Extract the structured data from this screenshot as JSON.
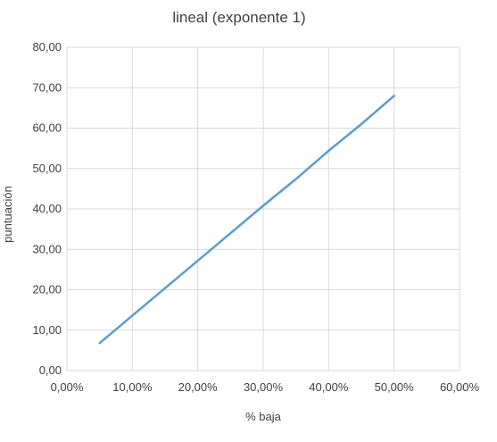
{
  "chart_data": {
    "type": "line",
    "title": "lineal (exponente 1)",
    "xlabel": "% baja",
    "ylabel": "puntuación",
    "xlim": [
      0,
      60
    ],
    "ylim": [
      0,
      80
    ],
    "x_ticks": [
      0,
      10,
      20,
      30,
      40,
      50,
      60
    ],
    "y_ticks": [
      0,
      10,
      20,
      30,
      40,
      50,
      60,
      70,
      80
    ],
    "x_tick_labels": [
      "0,00%",
      "10,00%",
      "20,00%",
      "30,00%",
      "40,00%",
      "50,00%",
      "60,00%"
    ],
    "y_tick_labels": [
      "0,00",
      "10,00",
      "20,00",
      "30,00",
      "40,00",
      "50,00",
      "60,00",
      "70,00",
      "80,00"
    ],
    "grid": true,
    "legend": "none",
    "series": [
      {
        "color": "#5b9bd5",
        "x": [
          5,
          10,
          15,
          20,
          25,
          30,
          35,
          40,
          45,
          50
        ],
        "y": [
          6.8,
          13.6,
          20.4,
          27.2,
          34.0,
          40.8,
          47.4,
          54.4,
          61.0,
          68.0
        ]
      }
    ]
  }
}
